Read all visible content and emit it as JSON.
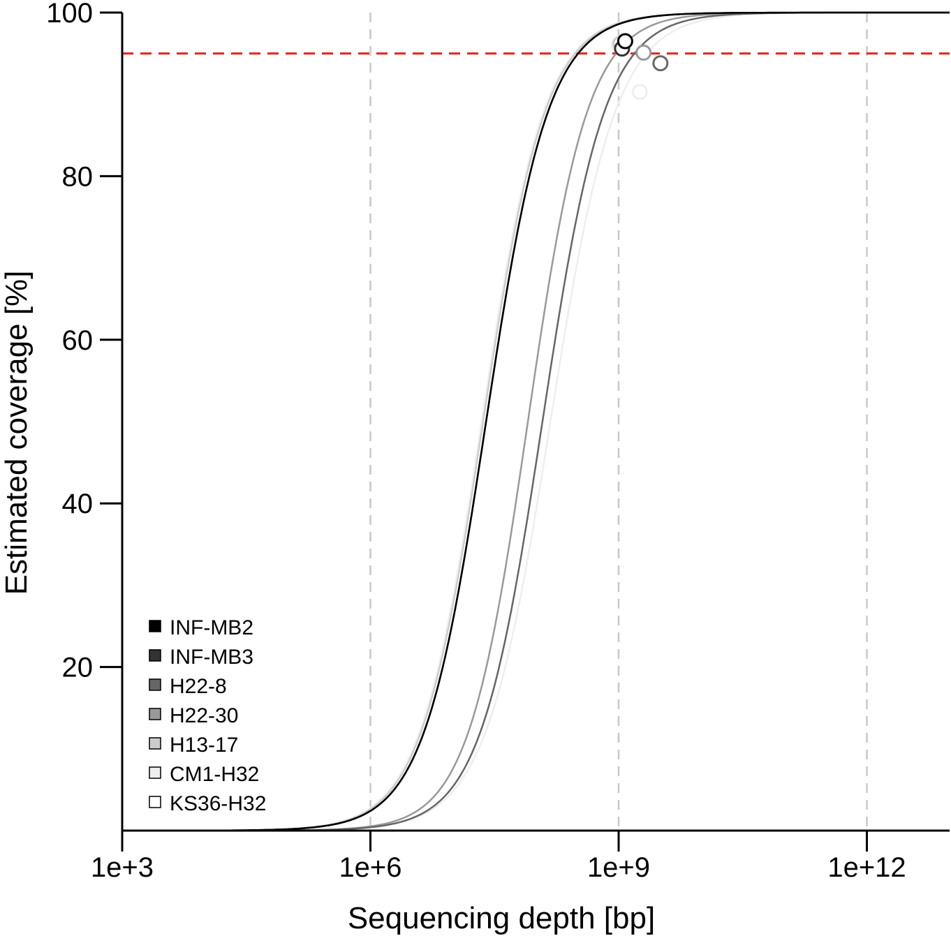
{
  "chart_data": {
    "type": "line",
    "title": "",
    "xlabel": "Sequencing depth [bp]",
    "ylabel": "Estimated coverage [%]",
    "x_scale": "log10",
    "xlim": [
      1000,
      10000000000000.0
    ],
    "ylim": [
      0,
      100
    ],
    "x_ticks": [
      1000,
      1000000,
      1000000000,
      1000000000000
    ],
    "x_tick_labels": [
      "1e+3",
      "1e+6",
      "1e+9",
      "1e+12"
    ],
    "y_ticks": [
      20,
      40,
      60,
      80,
      100
    ],
    "y_tick_labels": [
      "20",
      "40",
      "60",
      "80",
      "100"
    ],
    "grid": "vertical dashed lines at x ticks",
    "reference_line": {
      "y": 95,
      "color": "#e8221c",
      "style": "dashed"
    },
    "legend_position": "bottom-left",
    "series": [
      {
        "name": "INF-MB2",
        "color": "#000000",
        "midpoint_depth": 25000000,
        "slope": 1.15,
        "observed_point": {
          "x": 1200000000,
          "y": 96.5
        }
      },
      {
        "name": "INF-MB3",
        "color": "#333333",
        "midpoint_depth": 25000000,
        "slope": 1.15,
        "observed_point": {
          "x": 1100000000,
          "y": 95.6
        }
      },
      {
        "name": "H22-8",
        "color": "#666666",
        "midpoint_depth": 120000000,
        "slope": 1.15,
        "observed_point": {
          "x": 3200000000,
          "y": 93.8
        }
      },
      {
        "name": "H22-30",
        "color": "#999999",
        "midpoint_depth": 80000000,
        "slope": 1.2,
        "observed_point": {
          "x": 2000000000,
          "y": 95.1
        }
      },
      {
        "name": "H13-17",
        "color": "#cccccc",
        "midpoint_depth": 23000000,
        "slope": 1.15,
        "observed_point": {
          "x": 1050000000,
          "y": 96.2
        }
      },
      {
        "name": "CM1-H32",
        "color": "#eeeeee",
        "midpoint_depth": 150000000,
        "slope": 1.1,
        "observed_point": {
          "x": 1800000000,
          "y": 90.3
        }
      },
      {
        "name": "KS36-H32",
        "color": "#ffffff",
        "midpoint_depth": 22000000,
        "slope": 1.15,
        "observed_point": {
          "x": 1000000000,
          "y": 96.0
        }
      }
    ]
  }
}
